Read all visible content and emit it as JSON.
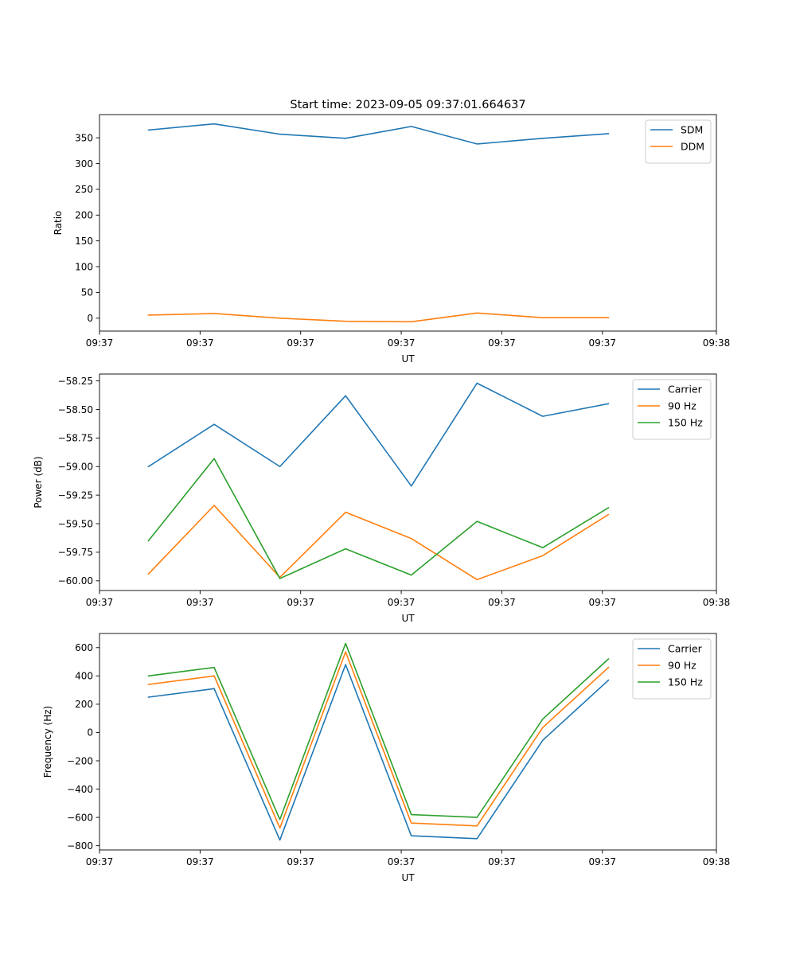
{
  "figure": {
    "title": "Start time: 2023-09-05 09:37:01.664637"
  },
  "chart_data": [
    {
      "type": "line",
      "title": "Start time: 2023-09-05 09:37:01.664637",
      "xlabel": "UT",
      "ylabel": "Ratio",
      "xlim": [
        0,
        9.2
      ],
      "ylim": [
        -25,
        395
      ],
      "xticks": [
        0,
        1.5,
        3,
        4.5,
        6,
        7.5,
        9.2
      ],
      "xtick_labels": [
        "09:37",
        "09:37",
        "09:37",
        "09:37",
        "09:37",
        "09:37",
        "09:38"
      ],
      "yticks": [
        0,
        50,
        100,
        150,
        200,
        250,
        300,
        350
      ],
      "ytick_labels": [
        "0",
        "50",
        "100",
        "150",
        "200",
        "250",
        "300",
        "350"
      ],
      "x": [
        0.73,
        1.71,
        2.69,
        3.67,
        4.65,
        5.63,
        6.61,
        7.59
      ],
      "legend_position": "top-right",
      "series": [
        {
          "name": "SDM",
          "color": "#1f77b4",
          "values": [
            365,
            377,
            357,
            349,
            372,
            338,
            349,
            358
          ]
        },
        {
          "name": "DDM",
          "color": "#ff7f0e",
          "values": [
            6,
            9,
            0,
            -6,
            -7,
            10,
            1,
            1
          ]
        }
      ]
    },
    {
      "type": "line",
      "title": "",
      "xlabel": "UT",
      "ylabel": "Power (dB)",
      "xlim": [
        0,
        9.2
      ],
      "ylim": [
        -60.085,
        -58.19
      ],
      "xticks": [
        0,
        1.5,
        3,
        4.5,
        6,
        7.5,
        9.2
      ],
      "xtick_labels": [
        "09:37",
        "09:37",
        "09:37",
        "09:37",
        "09:37",
        "09:37",
        "09:38"
      ],
      "yticks": [
        -60.0,
        -59.75,
        -59.5,
        -59.25,
        -59.0,
        -58.75,
        -58.5,
        -58.25
      ],
      "ytick_labels": [
        "−60.00",
        "−59.75",
        "−59.50",
        "−59.25",
        "−59.00",
        "−58.75",
        "−58.50",
        "−58.25"
      ],
      "x": [
        0.73,
        1.71,
        2.69,
        3.67,
        4.65,
        5.63,
        6.61,
        7.59
      ],
      "legend_position": "top-right",
      "series": [
        {
          "name": "Carrier",
          "color": "#1f77b4",
          "values": [
            -59.0,
            -58.63,
            -59.0,
            -58.38,
            -59.17,
            -58.27,
            -58.56,
            -58.45
          ]
        },
        {
          "name": "90 Hz",
          "color": "#ff7f0e",
          "values": [
            -59.94,
            -59.34,
            -59.97,
            -59.4,
            -59.63,
            -59.99,
            -59.78,
            -59.42
          ]
        },
        {
          "name": "150 Hz",
          "color": "#2ca02c",
          "values": [
            -59.65,
            -58.93,
            -59.98,
            -59.72,
            -59.95,
            -59.48,
            -59.71,
            -59.36
          ]
        }
      ]
    },
    {
      "type": "line",
      "title": "",
      "xlabel": "UT",
      "ylabel": "Frequency (Hz)",
      "xlim": [
        0,
        9.2
      ],
      "ylim": [
        -830,
        700
      ],
      "xticks": [
        0,
        1.5,
        3,
        4.5,
        6,
        7.5,
        9.2
      ],
      "xtick_labels": [
        "09:37",
        "09:37",
        "09:37",
        "09:37",
        "09:37",
        "09:37",
        "09:38"
      ],
      "yticks": [
        -800,
        -600,
        -400,
        -200,
        0,
        200,
        400,
        600
      ],
      "ytick_labels": [
        "−800",
        "−600",
        "−400",
        "−200",
        "0",
        "200",
        "400",
        "600"
      ],
      "x": [
        0.73,
        1.71,
        2.69,
        3.67,
        4.65,
        5.63,
        6.61,
        7.59
      ],
      "legend_position": "top-right",
      "series": [
        {
          "name": "Carrier",
          "color": "#1f77b4",
          "values": [
            250,
            310,
            -760,
            480,
            -730,
            -750,
            -55,
            370
          ]
        },
        {
          "name": "90 Hz",
          "color": "#ff7f0e",
          "values": [
            340,
            400,
            -675,
            570,
            -640,
            -660,
            35,
            460
          ]
        },
        {
          "name": "150 Hz",
          "color": "#2ca02c",
          "values": [
            400,
            460,
            -615,
            630,
            -580,
            -600,
            95,
            520
          ]
        }
      ]
    }
  ]
}
